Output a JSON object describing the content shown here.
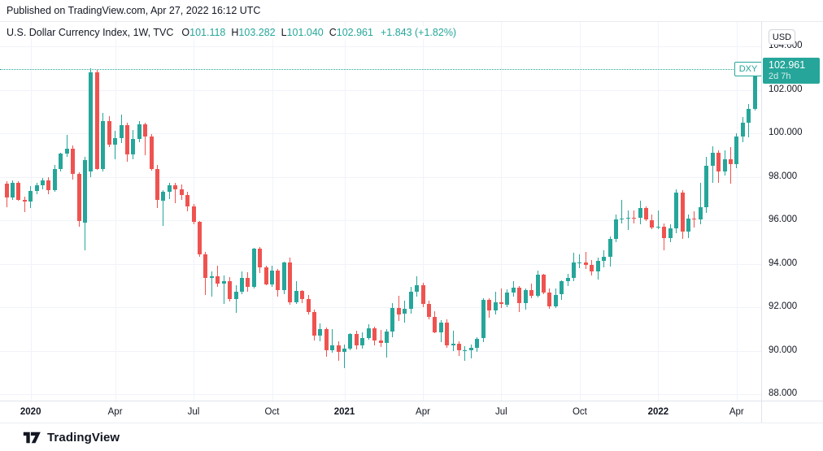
{
  "header": {
    "published_text": "Published on TradingView.com, Apr 27, 2022 16:12 UTC"
  },
  "legend": {
    "title": "U.S. Dollar Currency Index, 1W, TVC",
    "open_label": "O",
    "open_value": "101.118",
    "high_label": "H",
    "high_value": "103.282",
    "low_label": "L",
    "low_value": "101.040",
    "close_label": "C",
    "close_value": "102.961",
    "change": "+1.843 (+1.82%)"
  },
  "price_axis": {
    "currency_badge": "USD",
    "labels": [
      "104.000",
      "102.000",
      "100.000",
      "98.000",
      "96.000",
      "94.000",
      "92.000",
      "90.000",
      "88.000"
    ]
  },
  "price_tag": {
    "symbol": "DXY",
    "price": "102.961",
    "countdown": "2d 7h"
  },
  "footer": {
    "brand": "TradingView"
  },
  "colors": {
    "up": "#26a69a",
    "down": "#ef5350",
    "grid": "#f0f3fa",
    "axis_border": "#e0e3eb",
    "text": "#131722",
    "accent": "#26a69a"
  },
  "chart_data": {
    "type": "candlestick",
    "title": "U.S. Dollar Currency Index",
    "symbol": "DXY",
    "timeframe": "1W",
    "exchange": "TVC",
    "last_price": 102.961,
    "price_gridlines": [
      104,
      102,
      100,
      98,
      96,
      94,
      92,
      90,
      88
    ],
    "y_range_visible": [
      87.7,
      105.1
    ],
    "time_markers": [
      {
        "label": "2020",
        "candle_index": 4,
        "bold": true
      },
      {
        "label": "Apr",
        "candle_index": 18,
        "bold": false
      },
      {
        "label": "Jul",
        "candle_index": 31,
        "bold": false
      },
      {
        "label": "Oct",
        "candle_index": 44,
        "bold": false
      },
      {
        "label": "2021",
        "candle_index": 56,
        "bold": true
      },
      {
        "label": "Apr",
        "candle_index": 69,
        "bold": false
      },
      {
        "label": "Jul",
        "candle_index": 82,
        "bold": false
      },
      {
        "label": "Oct",
        "candle_index": 95,
        "bold": false
      },
      {
        "label": "2022",
        "candle_index": 108,
        "bold": true
      },
      {
        "label": "Apr",
        "candle_index": 121,
        "bold": false
      }
    ],
    "candles_format": [
      "open",
      "high",
      "low",
      "close"
    ],
    "candles": [
      [
        97.7,
        97.8,
        96.6,
        97.05
      ],
      [
        97.05,
        97.85,
        96.95,
        97.73
      ],
      [
        97.73,
        97.78,
        96.88,
        96.95
      ],
      [
        96.95,
        97.08,
        96.36,
        96.85
      ],
      [
        96.85,
        97.58,
        96.55,
        97.35
      ],
      [
        97.35,
        97.73,
        97.2,
        97.62
      ],
      [
        97.62,
        97.95,
        97.4,
        97.85
      ],
      [
        97.85,
        98.0,
        97.2,
        97.39
      ],
      [
        97.39,
        98.55,
        97.31,
        98.35
      ],
      [
        98.35,
        99.1,
        98.25,
        99.05
      ],
      [
        99.05,
        99.91,
        98.9,
        99.3
      ],
      [
        99.3,
        99.45,
        97.85,
        98.13
      ],
      [
        98.13,
        98.2,
        95.7,
        95.95
      ],
      [
        95.9,
        98.9,
        94.63,
        98.75
      ],
      [
        98.25,
        102.99,
        98.0,
        102.82
      ],
      [
        102.8,
        102.97,
        98.3,
        98.36
      ],
      [
        98.36,
        100.95,
        98.25,
        100.58
      ],
      [
        100.58,
        100.8,
        99.35,
        99.48
      ],
      [
        99.48,
        100.1,
        98.81,
        99.78
      ],
      [
        99.78,
        100.87,
        99.55,
        100.38
      ],
      [
        100.38,
        100.49,
        98.7,
        99.02
      ],
      [
        99.02,
        100.15,
        98.8,
        99.73
      ],
      [
        99.73,
        100.56,
        99.6,
        100.4
      ],
      [
        100.4,
        100.48,
        99.0,
        99.86
      ],
      [
        99.86,
        99.98,
        98.27,
        98.34
      ],
      [
        98.34,
        98.55,
        96.55,
        96.94
      ],
      [
        96.9,
        97.4,
        95.75,
        97.32
      ],
      [
        97.32,
        97.74,
        96.97,
        97.62
      ],
      [
        97.62,
        97.72,
        96.8,
        97.43
      ],
      [
        97.43,
        97.65,
        96.95,
        97.17
      ],
      [
        97.17,
        97.3,
        96.4,
        96.65
      ],
      [
        96.65,
        96.75,
        95.8,
        95.94
      ],
      [
        95.94,
        95.98,
        94.3,
        94.44
      ],
      [
        94.44,
        94.55,
        92.55,
        93.35
      ],
      [
        93.35,
        93.65,
        92.5,
        93.44
      ],
      [
        93.44,
        93.9,
        92.93,
        93.1
      ],
      [
        93.08,
        93.45,
        92.13,
        93.2
      ],
      [
        93.2,
        93.37,
        92.25,
        92.37
      ],
      [
        92.37,
        93.0,
        91.74,
        92.72
      ],
      [
        92.72,
        93.66,
        92.6,
        93.33
      ],
      [
        93.33,
        93.6,
        92.7,
        92.93
      ],
      [
        92.93,
        94.74,
        92.85,
        94.68
      ],
      [
        94.68,
        94.77,
        93.55,
        93.84
      ],
      [
        93.84,
        93.9,
        92.99,
        93.06
      ],
      [
        93.06,
        93.9,
        92.95,
        93.68
      ],
      [
        93.68,
        93.75,
        92.47,
        92.77
      ],
      [
        92.77,
        94.1,
        92.6,
        94.04
      ],
      [
        94.04,
        94.3,
        92.1,
        92.23
      ],
      [
        92.23,
        93.21,
        92.15,
        92.76
      ],
      [
        92.76,
        92.8,
        92.2,
        92.39
      ],
      [
        92.39,
        92.55,
        91.68,
        91.79
      ],
      [
        91.79,
        91.9,
        90.48,
        90.7
      ],
      [
        90.7,
        91.25,
        90.42,
        90.98
      ],
      [
        90.98,
        91.05,
        89.73,
        90.0
      ],
      [
        90.0,
        90.98,
        89.92,
        90.25
      ],
      [
        90.25,
        90.45,
        89.52,
        89.94
      ],
      [
        89.94,
        90.3,
        89.21,
        90.1
      ],
      [
        90.1,
        90.8,
        90.0,
        90.77
      ],
      [
        90.77,
        90.9,
        90.04,
        90.24
      ],
      [
        90.24,
        90.85,
        90.1,
        90.58
      ],
      [
        90.58,
        91.2,
        90.5,
        91.04
      ],
      [
        91.04,
        91.1,
        90.25,
        90.48
      ],
      [
        90.48,
        90.95,
        90.15,
        90.36
      ],
      [
        90.36,
        90.98,
        89.68,
        90.88
      ],
      [
        90.88,
        92.2,
        90.6,
        91.98
      ],
      [
        91.98,
        92.51,
        91.36,
        91.68
      ],
      [
        91.68,
        92.3,
        91.3,
        91.92
      ],
      [
        91.92,
        92.92,
        91.7,
        92.72
      ],
      [
        92.72,
        93.44,
        92.5,
        93.02
      ],
      [
        93.02,
        93.12,
        92.0,
        92.16
      ],
      [
        92.16,
        92.3,
        91.46,
        91.56
      ],
      [
        91.56,
        91.8,
        90.8,
        90.83
      ],
      [
        90.83,
        91.4,
        90.4,
        91.28
      ],
      [
        91.28,
        91.43,
        90.13,
        90.23
      ],
      [
        90.23,
        90.91,
        89.98,
        90.32
      ],
      [
        90.32,
        90.42,
        89.74,
        90.02
      ],
      [
        90.02,
        90.2,
        89.53,
        90.03
      ],
      [
        90.03,
        90.3,
        89.66,
        90.14
      ],
      [
        90.14,
        90.62,
        89.95,
        90.56
      ],
      [
        90.56,
        92.41,
        90.4,
        92.32
      ],
      [
        92.32,
        92.4,
        91.51,
        91.85
      ],
      [
        91.85,
        92.7,
        91.65,
        92.23
      ],
      [
        92.23,
        92.85,
        91.98,
        92.13
      ],
      [
        92.13,
        92.83,
        91.98,
        92.69
      ],
      [
        92.69,
        93.19,
        92.5,
        92.91
      ],
      [
        92.91,
        92.98,
        91.78,
        92.17
      ],
      [
        92.17,
        92.85,
        91.9,
        92.8
      ],
      [
        92.8,
        93.07,
        92.4,
        92.52
      ],
      [
        92.52,
        93.68,
        92.45,
        93.5
      ],
      [
        93.5,
        93.55,
        92.6,
        92.69
      ],
      [
        92.69,
        92.85,
        91.94,
        92.03
      ],
      [
        92.03,
        92.88,
        91.95,
        92.58
      ],
      [
        92.58,
        93.22,
        92.32,
        93.2
      ],
      [
        93.2,
        93.53,
        92.98,
        93.33
      ],
      [
        93.33,
        94.5,
        93.2,
        94.04
      ],
      [
        94.04,
        94.45,
        93.8,
        94.06
      ],
      [
        94.06,
        94.55,
        93.75,
        93.94
      ],
      [
        93.94,
        94.17,
        93.48,
        93.64
      ],
      [
        93.64,
        94.3,
        93.28,
        94.12
      ],
      [
        94.12,
        94.63,
        93.82,
        94.32
      ],
      [
        94.32,
        95.27,
        93.87,
        95.13
      ],
      [
        95.13,
        96.25,
        95.0,
        96.03
      ],
      [
        96.03,
        96.94,
        95.85,
        96.09
      ],
      [
        96.09,
        96.45,
        95.54,
        96.12
      ],
      [
        96.12,
        96.46,
        95.85,
        96.1
      ],
      [
        96.1,
        96.91,
        95.8,
        96.57
      ],
      [
        96.57,
        96.63,
        95.95,
        96.02
      ],
      [
        96.02,
        96.25,
        95.57,
        95.67
      ],
      [
        95.67,
        96.46,
        95.58,
        95.72
      ],
      [
        95.72,
        95.85,
        94.63,
        95.17
      ],
      [
        95.17,
        95.8,
        95.0,
        95.64
      ],
      [
        95.64,
        97.44,
        95.4,
        97.27
      ],
      [
        97.27,
        97.4,
        95.14,
        95.48
      ],
      [
        95.48,
        96.25,
        95.17,
        96.08
      ],
      [
        96.08,
        96.43,
        95.67,
        96.04
      ],
      [
        96.04,
        97.74,
        95.8,
        96.61
      ],
      [
        96.61,
        98.93,
        96.35,
        98.51
      ],
      [
        98.51,
        99.42,
        97.71,
        99.12
      ],
      [
        99.12,
        99.2,
        97.72,
        98.23
      ],
      [
        98.23,
        99.23,
        98.05,
        98.79
      ],
      [
        98.79,
        99.35,
        97.68,
        98.57
      ],
      [
        98.57,
        100.0,
        98.4,
        99.84
      ],
      [
        99.84,
        100.76,
        99.6,
        100.5
      ],
      [
        100.5,
        101.33,
        99.82,
        101.12
      ],
      [
        101.118,
        103.282,
        101.04,
        102.961
      ]
    ]
  }
}
